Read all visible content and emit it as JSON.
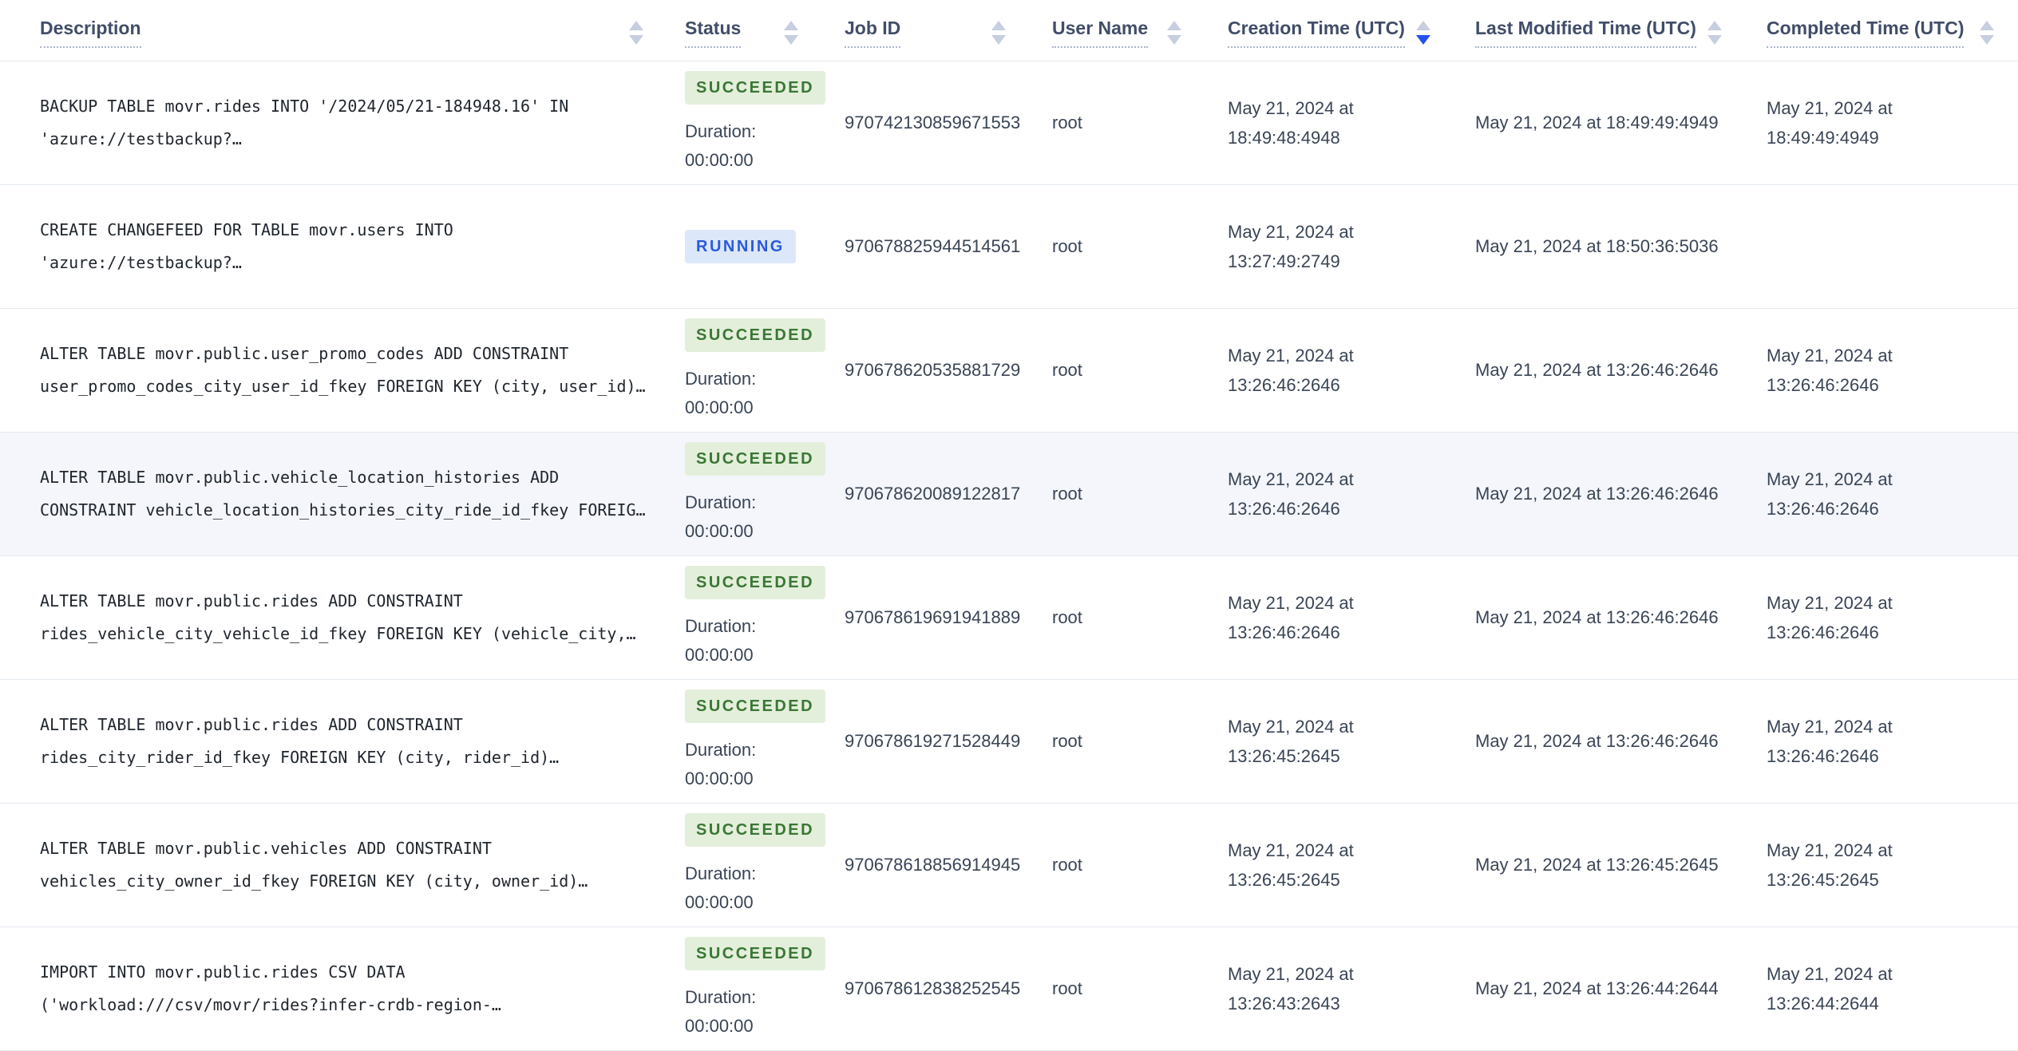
{
  "table": {
    "columns": [
      {
        "key": "description",
        "label": "Description",
        "sort": "none"
      },
      {
        "key": "status",
        "label": "Status",
        "sort": "none"
      },
      {
        "key": "job_id",
        "label": "Job ID",
        "sort": "none"
      },
      {
        "key": "user_name",
        "label": "User Name",
        "sort": "none"
      },
      {
        "key": "creation_time",
        "label": "Creation Time (UTC)",
        "sort": "desc"
      },
      {
        "key": "last_modified_time",
        "label": "Last Modified Time (UTC)",
        "sort": "none"
      },
      {
        "key": "completed_time",
        "label": "Completed Time (UTC)",
        "sort": "none"
      }
    ],
    "duration_label": "Duration:",
    "rows": [
      {
        "description_lines": [
          "BACKUP TABLE movr.rides INTO '/2024/05/21-184948.16' IN",
          "'azure://testbackup?…"
        ],
        "status": "SUCCEEDED",
        "duration": "00:00:00",
        "job_id": "970742130859671553",
        "user_name": "root",
        "creation_time": "May 21, 2024 at 18:49:48:4948",
        "last_modified_time": "May 21, 2024 at 18:49:49:4949",
        "completed_time": "May 21, 2024 at 18:49:49:4949",
        "highlighted": false
      },
      {
        "description_lines": [
          "CREATE CHANGEFEED FOR TABLE movr.users INTO",
          "'azure://testbackup?…"
        ],
        "status": "RUNNING",
        "duration": null,
        "job_id": "970678825944514561",
        "user_name": "root",
        "creation_time": "May 21, 2024 at 13:27:49:2749",
        "last_modified_time": "May 21, 2024 at 18:50:36:5036",
        "completed_time": "",
        "highlighted": false
      },
      {
        "description_lines": [
          "ALTER TABLE movr.public.user_promo_codes ADD CONSTRAINT",
          "user_promo_codes_city_user_id_fkey FOREIGN KEY (city, user_id)…"
        ],
        "status": "SUCCEEDED",
        "duration": "00:00:00",
        "job_id": "970678620535881729",
        "user_name": "root",
        "creation_time": "May 21, 2024 at 13:26:46:2646",
        "last_modified_time": "May 21, 2024 at 13:26:46:2646",
        "completed_time": "May 21, 2024 at 13:26:46:2646",
        "highlighted": false
      },
      {
        "description_lines": [
          "ALTER TABLE movr.public.vehicle_location_histories ADD",
          "CONSTRAINT vehicle_location_histories_city_ride_id_fkey FOREIG…"
        ],
        "status": "SUCCEEDED",
        "duration": "00:00:00",
        "job_id": "970678620089122817",
        "user_name": "root",
        "creation_time": "May 21, 2024 at 13:26:46:2646",
        "last_modified_time": "May 21, 2024 at 13:26:46:2646",
        "completed_time": "May 21, 2024 at 13:26:46:2646",
        "highlighted": true
      },
      {
        "description_lines": [
          "ALTER TABLE movr.public.rides ADD CONSTRAINT",
          "rides_vehicle_city_vehicle_id_fkey FOREIGN KEY (vehicle_city,…"
        ],
        "status": "SUCCEEDED",
        "duration": "00:00:00",
        "job_id": "970678619691941889",
        "user_name": "root",
        "creation_time": "May 21, 2024 at 13:26:46:2646",
        "last_modified_time": "May 21, 2024 at 13:26:46:2646",
        "completed_time": "May 21, 2024 at 13:26:46:2646",
        "highlighted": false
      },
      {
        "description_lines": [
          "ALTER TABLE movr.public.rides ADD CONSTRAINT",
          "rides_city_rider_id_fkey FOREIGN KEY (city, rider_id)…"
        ],
        "status": "SUCCEEDED",
        "duration": "00:00:00",
        "job_id": "970678619271528449",
        "user_name": "root",
        "creation_time": "May 21, 2024 at 13:26:45:2645",
        "last_modified_time": "May 21, 2024 at 13:26:46:2646",
        "completed_time": "May 21, 2024 at 13:26:46:2646",
        "highlighted": false
      },
      {
        "description_lines": [
          "ALTER TABLE movr.public.vehicles ADD CONSTRAINT",
          "vehicles_city_owner_id_fkey FOREIGN KEY (city, owner_id)…"
        ],
        "status": "SUCCEEDED",
        "duration": "00:00:00",
        "job_id": "970678618856914945",
        "user_name": "root",
        "creation_time": "May 21, 2024 at 13:26:45:2645",
        "last_modified_time": "May 21, 2024 at 13:26:45:2645",
        "completed_time": "May 21, 2024 at 13:26:45:2645",
        "highlighted": false
      },
      {
        "description_lines": [
          "IMPORT INTO movr.public.rides CSV DATA",
          "('workload:///csv/movr/rides?infer-crdb-region-…"
        ],
        "status": "SUCCEEDED",
        "duration": "00:00:00",
        "job_id": "970678612838252545",
        "user_name": "root",
        "creation_time": "May 21, 2024 at 13:26:43:2643",
        "last_modified_time": "May 21, 2024 at 13:26:44:2644",
        "completed_time": "May 21, 2024 at 13:26:44:2644",
        "highlighted": false
      }
    ]
  },
  "colors": {
    "succeeded_text": "#3a7734",
    "succeeded_bg": "#e3efdb",
    "running_text": "#2a5adb",
    "running_bg": "#dce8fa",
    "sort_active": "#2350f0",
    "row_highlight": "#f4f6fb",
    "header_text": "#414d68",
    "border": "#e4e9f1"
  }
}
